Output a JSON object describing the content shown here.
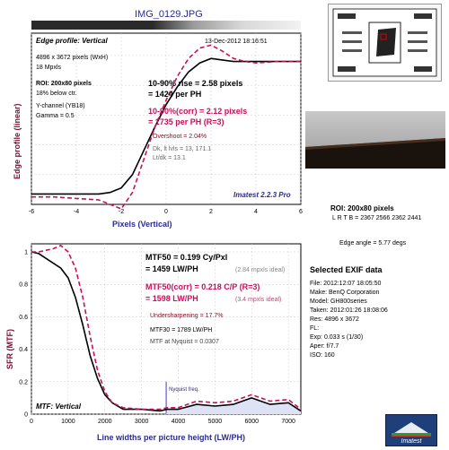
{
  "header": {
    "filename": "IMG_0129.JPG"
  },
  "edge_panel": {
    "title": "Edge profile: Vertical",
    "date": "13-Dec-2012 18:16:51",
    "info": [
      "4896 x 3672 pixels (WxH)",
      "18 Mpxls"
    ],
    "roi": "ROI: 200x80 pixels",
    "below": "18% below ctr.",
    "channel": "Y-channel (YB18)",
    "gamma": "Gamma = 0.5",
    "rise1": "10-90% rise = 2.58 pixels",
    "rise2": "= 1424 per PH",
    "corr1": "10-90%(corr) = 2.12 pixels",
    "corr2": "= 1735 per PH  (R=3)",
    "overshoot": "Overshoot = 2.04%",
    "dk_lt": "Dk, lt lvls = 13, 171.1",
    "ltdk": "Lt/dk = 13.1",
    "version": "Imatest 2.2.3 Pro",
    "ylabel": "Edge profile (linear)",
    "xlabel": "Pixels (Vertical)"
  },
  "mtf_panel": {
    "title": "MTF: Vertical",
    "mtf50": "MTF50 = 0.199 Cy/Pxl",
    "mtf50lw": "= 1459 LW/PH",
    "ideal1": "(2.84 mpxls ideal)",
    "mtf50c": "MTF50(corr) = 0.218 C/P  (R=3)",
    "mtf50clw": "= 1598 LW/PH",
    "ideal2": "(3.4 mpxls ideal)",
    "under": "Undersharpening = 17.7%",
    "mtf30": "MTF30 = 1789 LW/PH",
    "nyq": "MTF at Nyquist = 0.0307",
    "nyq_label": "Nyquist freq.",
    "ylabel": "SFR (MTF)",
    "xlabel": "Line widths per picture height (LW/PH)"
  },
  "roi_info": {
    "title": "ROI: 200x80 pixels",
    "lrtb": "L R T B = 2367 2566  2362 2441",
    "angle": "Edge angle = 5.77 degs"
  },
  "exif": {
    "title": "Selected EXIF data",
    "rows": [
      "File:    2012:12:07 18:05:50",
      "Make:   BenQ Corporation",
      "Model:  GH800series",
      "Taken:  2012:01:26 18:08:06",
      "Res:     4896 x 3672",
      "FL:",
      "Exp:     0.033 s  (1/30)",
      "Aper:   f/7.7",
      "ISO:    160"
    ]
  },
  "logo": {
    "text": "Imatest"
  },
  "colors": {
    "black_curve": "#000000",
    "corr_curve": "#c8105a",
    "accent": "#2b2b8f"
  },
  "chart_data": [
    {
      "type": "line",
      "title": "Edge profile: Vertical",
      "xlabel": "Pixels (Vertical)",
      "ylabel": "Edge profile (linear)",
      "xlim": [
        -6,
        6
      ],
      "ylim": [
        0,
        1.15
      ],
      "xticks": [
        -6,
        -4,
        -2,
        0,
        2,
        4,
        6
      ],
      "series": [
        {
          "style": "solid",
          "x": [
            -6,
            -5,
            -4,
            -3,
            -2.5,
            -2,
            -1.5,
            -1,
            -0.5,
            0,
            0.5,
            1,
            1.5,
            2,
            2.5,
            3,
            3.5,
            4,
            5,
            6
          ],
          "y": [
            0.07,
            0.07,
            0.07,
            0.07,
            0.08,
            0.11,
            0.2,
            0.36,
            0.52,
            0.67,
            0.79,
            0.89,
            0.95,
            0.98,
            0.97,
            0.96,
            0.96,
            0.96,
            0.96,
            0.96
          ]
        },
        {
          "style": "dashed",
          "x": [
            -6,
            -5,
            -4,
            -3,
            -2.5,
            -2,
            -1.5,
            -1,
            -0.5,
            0,
            0.5,
            1,
            1.5,
            2,
            2.5,
            3,
            3.5,
            4,
            5,
            6
          ],
          "y": [
            0.05,
            0.05,
            0.04,
            0.03,
            0.0,
            -0.03,
            0.08,
            0.3,
            0.52,
            0.7,
            0.86,
            0.98,
            1.05,
            1.07,
            1.03,
            0.98,
            0.96,
            0.95,
            0.96,
            0.96
          ]
        }
      ]
    },
    {
      "type": "line",
      "title": "MTF: Vertical",
      "xlabel": "Line widths per picture height (LW/PH)",
      "ylabel": "SFR (MTF)",
      "xlim": [
        0,
        7340
      ],
      "ylim": [
        0,
        1.05
      ],
      "xticks": [
        0,
        1000,
        2000,
        3000,
        4000,
        5000,
        6000,
        7000
      ],
      "yticks": [
        0,
        0.2,
        0.4,
        0.6,
        0.8,
        1
      ],
      "nyquist": 3672,
      "series": [
        {
          "style": "solid",
          "x": [
            0,
            200,
            400,
            600,
            800,
            1000,
            1200,
            1400,
            1600,
            1800,
            2000,
            2200,
            2500,
            3000,
            3500,
            3700,
            4000,
            4500,
            5000,
            5500,
            6000,
            6500,
            7000,
            7340
          ],
          "y": [
            1.0,
            0.99,
            0.96,
            0.93,
            0.9,
            0.84,
            0.72,
            0.55,
            0.36,
            0.22,
            0.12,
            0.07,
            0.03,
            0.03,
            0.02,
            0.03,
            0.03,
            0.06,
            0.05,
            0.06,
            0.1,
            0.06,
            0.07,
            0.02
          ]
        },
        {
          "style": "dashed",
          "x": [
            0,
            200,
            400,
            600,
            800,
            1000,
            1200,
            1400,
            1600,
            1800,
            2000,
            2200,
            2500,
            3000,
            3500,
            3700,
            4000,
            4500,
            5000,
            5500,
            6000,
            6500,
            7000,
            7340
          ],
          "y": [
            1.0,
            1.0,
            1.01,
            1.02,
            1.04,
            1.0,
            0.9,
            0.72,
            0.48,
            0.27,
            0.14,
            0.07,
            0.04,
            0.03,
            0.03,
            0.04,
            0.04,
            0.08,
            0.07,
            0.08,
            0.12,
            0.08,
            0.09,
            0.03
          ]
        }
      ]
    }
  ]
}
